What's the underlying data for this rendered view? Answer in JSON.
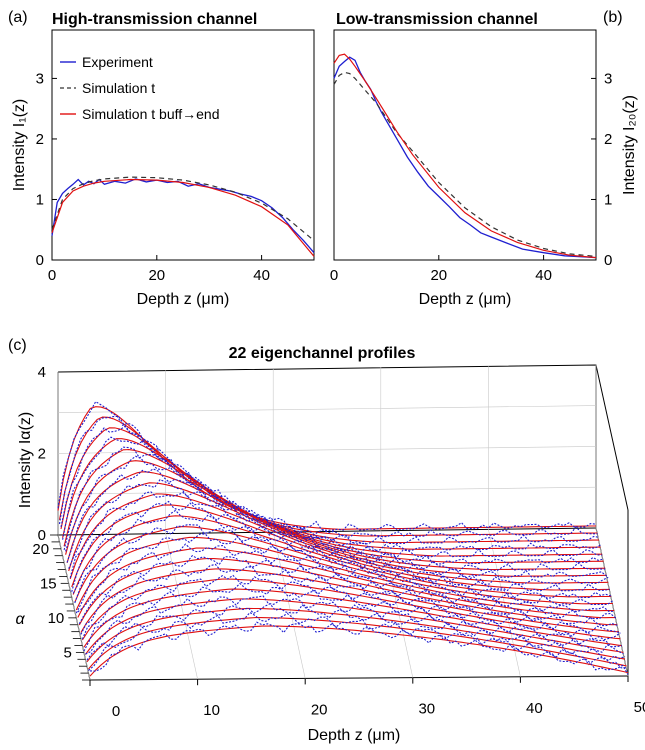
{
  "colors": {
    "experiment": "#1f1fd0",
    "simulation_t": "#333333",
    "simulation_buff": "#e01010"
  },
  "panel_a": {
    "label": "(a)",
    "title": "High-transmission channel",
    "ylabel": "Intensity I₁(z)",
    "xlabel": "Depth z (μm)",
    "xticks": [
      "0",
      "20",
      "40"
    ],
    "yticks": [
      "0",
      "1",
      "2",
      "3"
    ],
    "legend": [
      "Experiment",
      "Simulation t",
      "Simulation t buff→end"
    ]
  },
  "panel_b": {
    "label": "(b)",
    "title": "Low-transmission channel",
    "ylabel": "Intensity I₂₀(z)",
    "xlabel": "Depth z (μm)",
    "xticks": [
      "0",
      "20",
      "40"
    ],
    "yticks": [
      "0",
      "1",
      "2",
      "3"
    ]
  },
  "panel_c": {
    "label": "(c)",
    "title": "22 eigenchannel profiles",
    "zlabel": "Intensity Iα(z)",
    "ylabel": "α",
    "xlabel": "Depth z (μm)",
    "xticks": [
      "0",
      "10",
      "20",
      "30",
      "40",
      "50"
    ],
    "zticks": [
      "0",
      "2",
      "4"
    ],
    "alpha_ticks": [
      "5",
      "10",
      "15",
      "20"
    ]
  },
  "chart_data": [
    {
      "type": "line",
      "panel": "a",
      "title": "High-transmission channel",
      "xlabel": "Depth z (μm)",
      "ylabel": "Intensity I₁(z)",
      "xlim": [
        0,
        50
      ],
      "ylim": [
        0,
        3.8
      ],
      "series": [
        {
          "name": "Experiment",
          "x": [
            0,
            1,
            2,
            3,
            4,
            5,
            6,
            7,
            8,
            9,
            10,
            12,
            14,
            16,
            18,
            20,
            22,
            24,
            26,
            28,
            30,
            32,
            34,
            36,
            38,
            40,
            42,
            44,
            46,
            48,
            50
          ],
          "y": [
            0.4,
            0.95,
            1.1,
            1.18,
            1.25,
            1.33,
            1.24,
            1.3,
            1.26,
            1.33,
            1.25,
            1.3,
            1.27,
            1.34,
            1.29,
            1.32,
            1.28,
            1.3,
            1.22,
            1.26,
            1.2,
            1.17,
            1.14,
            1.09,
            1.05,
            0.98,
            0.86,
            0.7,
            0.5,
            0.32,
            0.12
          ]
        },
        {
          "name": "Simulation t",
          "x": [
            0,
            2,
            4,
            6,
            8,
            10,
            15,
            20,
            25,
            30,
            35,
            40,
            45,
            50
          ],
          "y": [
            0.5,
            1.0,
            1.18,
            1.26,
            1.31,
            1.34,
            1.37,
            1.36,
            1.32,
            1.24,
            1.12,
            0.94,
            0.68,
            0.32
          ]
        },
        {
          "name": "Simulation t buff→end",
          "x": [
            0,
            2,
            4,
            6,
            8,
            10,
            15,
            20,
            25,
            30,
            35,
            40,
            45,
            50
          ],
          "y": [
            0.45,
            0.95,
            1.14,
            1.22,
            1.27,
            1.3,
            1.33,
            1.32,
            1.28,
            1.2,
            1.07,
            0.88,
            0.58,
            0.06
          ]
        }
      ]
    },
    {
      "type": "line",
      "panel": "b",
      "title": "Low-transmission channel",
      "xlabel": "Depth z (μm)",
      "ylabel": "Intensity I₂₀(z)",
      "xlim": [
        0,
        50
      ],
      "ylim": [
        0,
        3.8
      ],
      "series": [
        {
          "name": "Experiment",
          "x": [
            0,
            1,
            2,
            3,
            4,
            5,
            6,
            7,
            8,
            9,
            10,
            12,
            14,
            16,
            18,
            20,
            22,
            24,
            26,
            28,
            30,
            33,
            36,
            40,
            44,
            48,
            50
          ],
          "y": [
            3.0,
            3.2,
            3.28,
            3.35,
            3.3,
            3.1,
            2.95,
            2.82,
            2.62,
            2.45,
            2.3,
            2.0,
            1.7,
            1.45,
            1.22,
            1.05,
            0.88,
            0.7,
            0.58,
            0.45,
            0.38,
            0.28,
            0.18,
            0.12,
            0.07,
            0.05,
            0.04
          ]
        },
        {
          "name": "Simulation t",
          "x": [
            0,
            1,
            2,
            3,
            4,
            6,
            8,
            10,
            12,
            15,
            20,
            25,
            30,
            35,
            40,
            45,
            50
          ],
          "y": [
            2.9,
            3.05,
            3.1,
            3.08,
            3.0,
            2.8,
            2.6,
            2.35,
            2.1,
            1.8,
            1.28,
            0.86,
            0.55,
            0.33,
            0.19,
            0.1,
            0.06
          ]
        },
        {
          "name": "Simulation t buff→end",
          "x": [
            0,
            1,
            2,
            3,
            4,
            6,
            8,
            10,
            12,
            15,
            20,
            25,
            30,
            35,
            40,
            45,
            50
          ],
          "y": [
            3.25,
            3.38,
            3.4,
            3.32,
            3.2,
            2.95,
            2.68,
            2.4,
            2.12,
            1.74,
            1.2,
            0.78,
            0.48,
            0.29,
            0.16,
            0.08,
            0.04
          ]
        }
      ]
    },
    {
      "type": "line",
      "panel": "c",
      "title": "22 eigenchannel profiles",
      "xlabel": "Depth z (μm)",
      "ylabel": "α",
      "zlabel": "Intensity Iα(z)",
      "xlim": [
        0,
        50
      ],
      "ylim": [
        1,
        22
      ],
      "zlim": [
        0,
        4
      ],
      "channels": 22,
      "series": [
        {
          "name": "Experiment",
          "profile_peak_first": 1.3,
          "profile_peak_last": 3.3
        },
        {
          "name": "Simulation t buff→end",
          "profile_peak_first": 1.3,
          "profile_peak_last": 3.3
        }
      ]
    }
  ]
}
